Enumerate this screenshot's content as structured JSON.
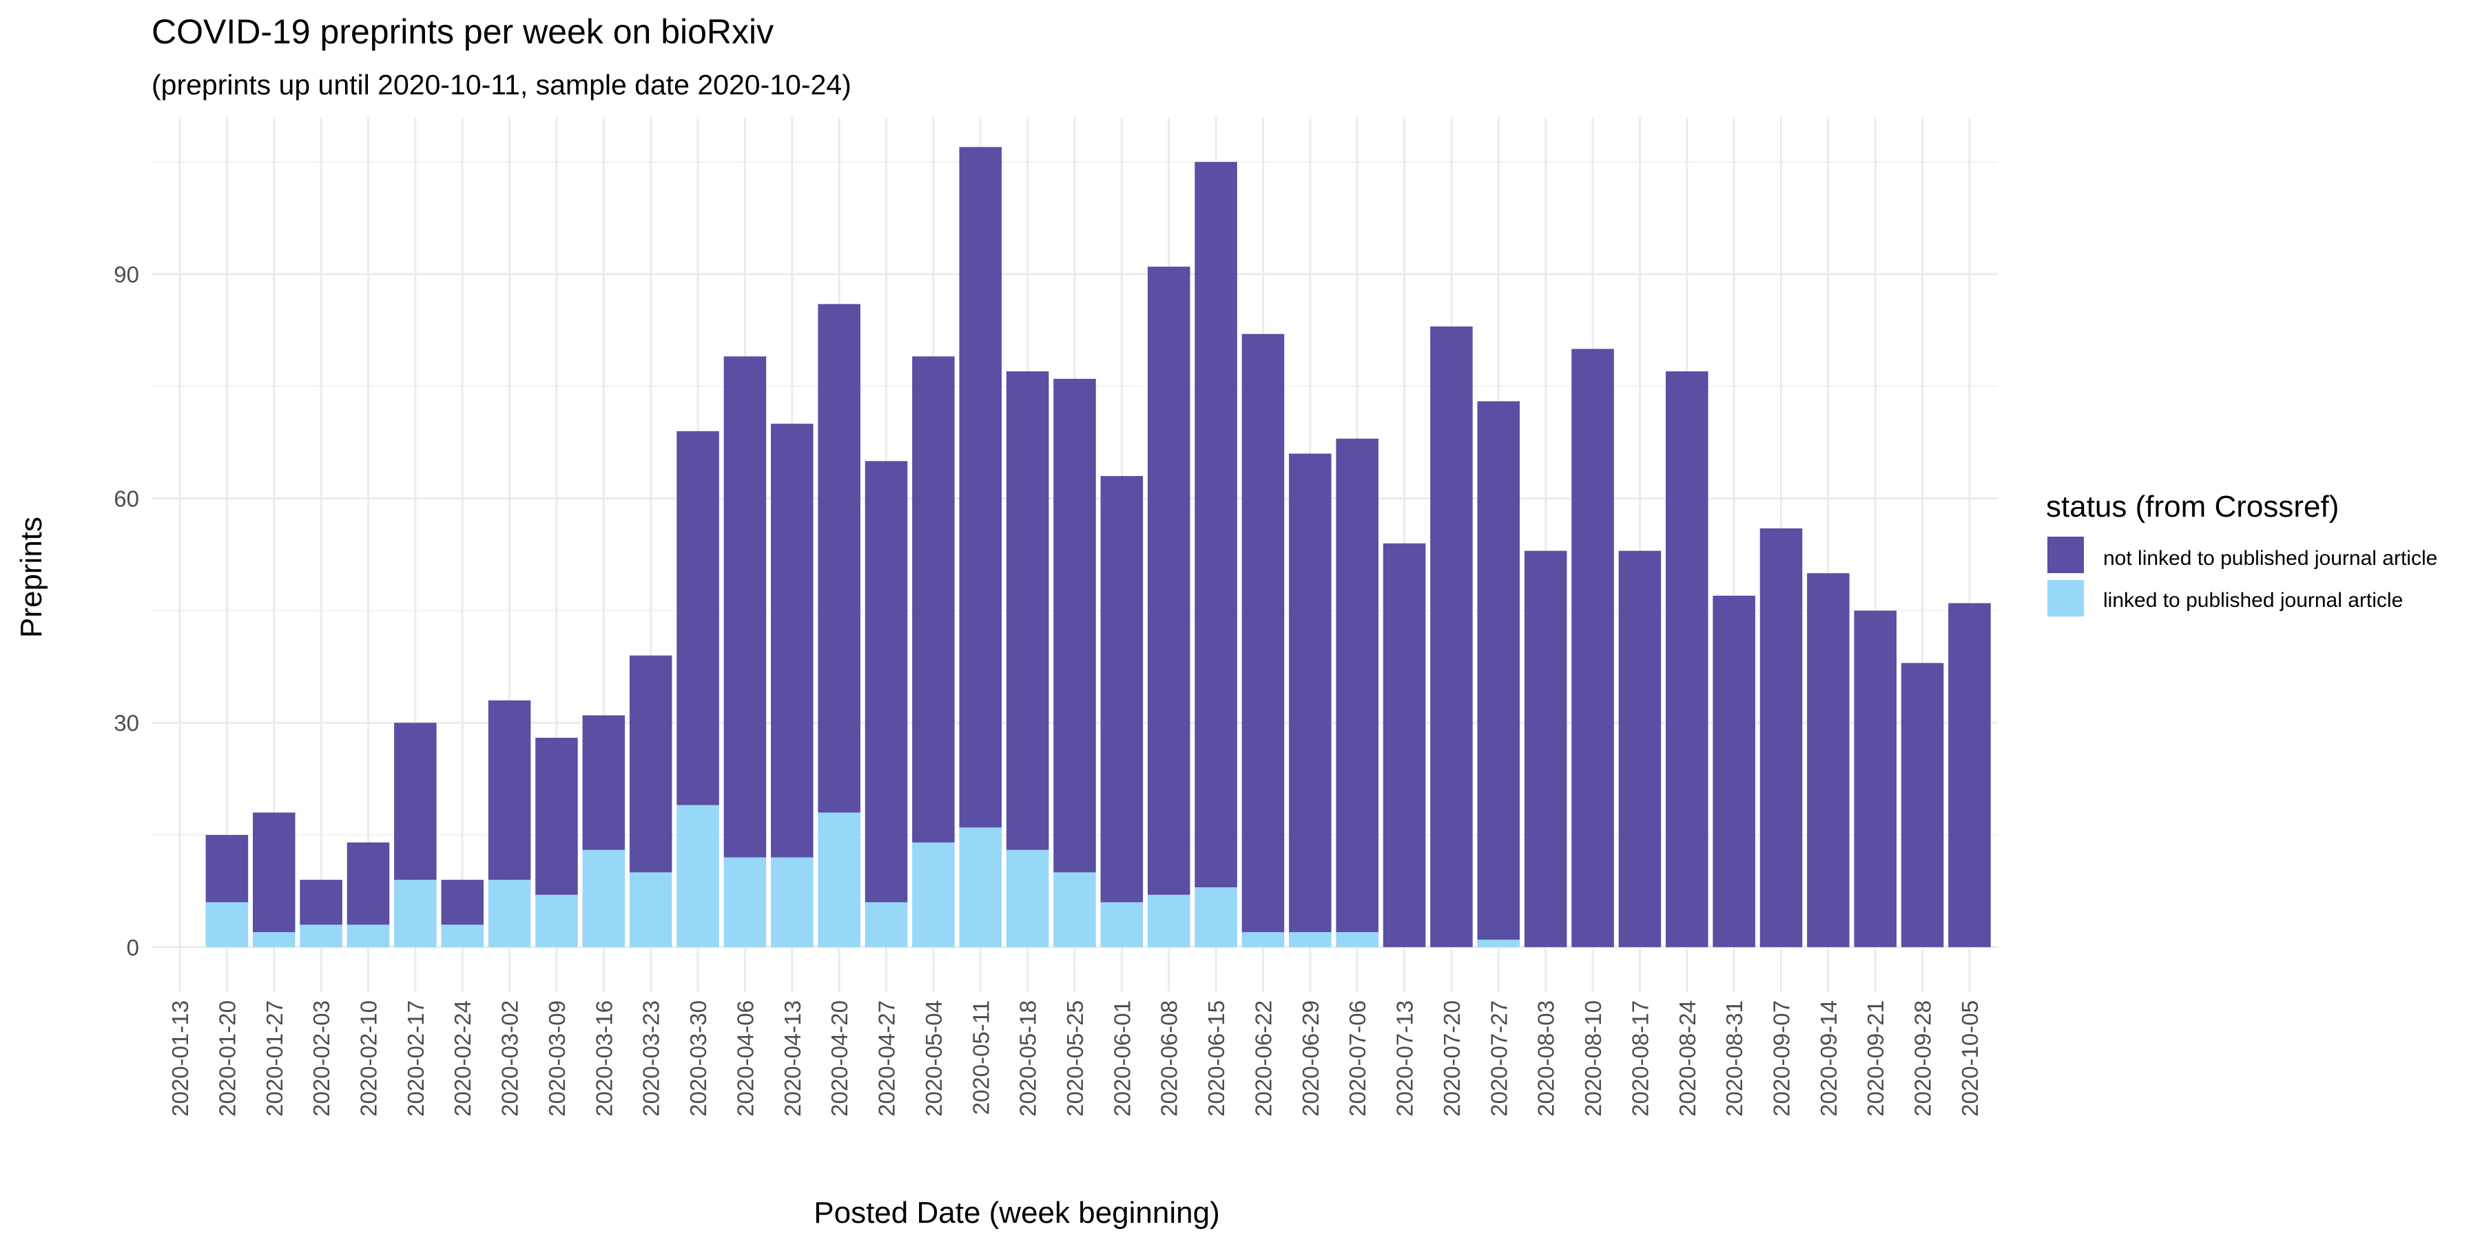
{
  "chart_data": {
    "type": "bar",
    "stacked": true,
    "title": "COVID-19 preprints per week on bioRxiv",
    "subtitle": "(preprints up until 2020-10-11, sample date 2020-10-24)",
    "xlabel": "Posted Date (week beginning)",
    "ylabel": "Preprints",
    "ylim": [
      -6,
      111
    ],
    "yticks": [
      0,
      30,
      60,
      90
    ],
    "grid": true,
    "legend": {
      "title": "status (from Crossref)",
      "placement": "right"
    },
    "x_ticks": [
      "2020-01-13",
      "2020-01-20",
      "2020-01-27",
      "2020-02-03",
      "2020-02-10",
      "2020-02-17",
      "2020-02-24",
      "2020-03-02",
      "2020-03-09",
      "2020-03-16",
      "2020-03-23",
      "2020-03-30",
      "2020-04-06",
      "2020-04-13",
      "2020-04-20",
      "2020-04-27",
      "2020-05-04",
      "2020-05-11",
      "2020-05-18",
      "2020-05-25",
      "2020-06-01",
      "2020-06-08",
      "2020-06-15",
      "2020-06-22",
      "2020-06-29",
      "2020-07-06",
      "2020-07-13",
      "2020-07-20",
      "2020-07-27",
      "2020-08-03",
      "2020-08-10",
      "2020-08-17",
      "2020-08-24",
      "2020-08-31",
      "2020-09-07",
      "2020-09-14",
      "2020-09-21",
      "2020-09-28",
      "2020-10-05"
    ],
    "categories": [
      "2020-01-20",
      "2020-01-27",
      "2020-02-03",
      "2020-02-10",
      "2020-02-17",
      "2020-02-24",
      "2020-03-02",
      "2020-03-09",
      "2020-03-16",
      "2020-03-23",
      "2020-03-30",
      "2020-04-06",
      "2020-04-13",
      "2020-04-20",
      "2020-04-27",
      "2020-05-04",
      "2020-05-11",
      "2020-05-18",
      "2020-05-25",
      "2020-06-01",
      "2020-06-08",
      "2020-06-15",
      "2020-06-22",
      "2020-06-29",
      "2020-07-06",
      "2020-07-13",
      "2020-07-20",
      "2020-07-27",
      "2020-08-03",
      "2020-08-10",
      "2020-08-17",
      "2020-08-24",
      "2020-08-31",
      "2020-09-07",
      "2020-09-14",
      "2020-09-21",
      "2020-09-28",
      "2020-10-05"
    ],
    "series": [
      {
        "name": "linked to published journal article",
        "color": "#97d7f8",
        "values": [
          6,
          2,
          3,
          3,
          9,
          3,
          9,
          7,
          13,
          10,
          19,
          12,
          12,
          18,
          6,
          14,
          16,
          13,
          10,
          6,
          7,
          8,
          2,
          2,
          2,
          0,
          0,
          1,
          0,
          0,
          0,
          0,
          0,
          0,
          0,
          0,
          0,
          0
        ]
      },
      {
        "name": "not linked to published journal article",
        "color": "#5a4fa2",
        "values": [
          9,
          16,
          6,
          11,
          21,
          6,
          24,
          21,
          18,
          29,
          50,
          67,
          58,
          68,
          59,
          65,
          91,
          64,
          66,
          57,
          84,
          97,
          80,
          64,
          66,
          54,
          83,
          72,
          53,
          80,
          53,
          77,
          47,
          56,
          50,
          45,
          38,
          46
        ]
      }
    ]
  }
}
